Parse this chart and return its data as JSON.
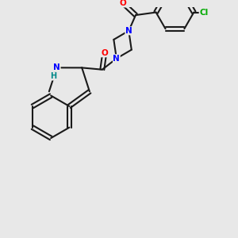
{
  "background_color": "#e8e8e8",
  "bond_color": "#1a1a1a",
  "bond_lw": 1.5,
  "atom_colors": {
    "N": "#0000ff",
    "O": "#ff0000",
    "Cl": "#00aa00",
    "H": "#008888",
    "C": "#1a1a1a"
  },
  "font_size": 7.5
}
